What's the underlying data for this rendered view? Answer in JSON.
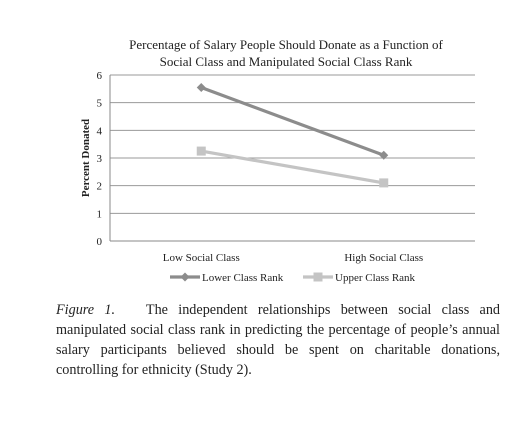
{
  "chart_data": {
    "type": "line",
    "title_lines": [
      "Percentage of Salary People Should Donate as a Function of",
      "Social Class and Manipulated Social Class Rank"
    ],
    "ylabel": "Percent Donated",
    "xlabel": "",
    "categories": [
      "Low Social Class",
      "High Social Class"
    ],
    "ylim": [
      0,
      6
    ],
    "yticks": [
      "0",
      "1",
      "2",
      "3",
      "4",
      "5",
      "6"
    ],
    "grid": true,
    "legend_position": "bottom",
    "series": [
      {
        "name": "Lower Class Rank",
        "values": [
          5.55,
          3.1
        ],
        "color": "#8c8c8c",
        "marker": "diamond"
      },
      {
        "name": "Upper Class Rank",
        "values": [
          3.25,
          2.1
        ],
        "color": "#c4c4c4",
        "marker": "square"
      }
    ]
  },
  "caption": {
    "label": "Figure 1.",
    "text": "The independent relationships between social class and manipulated social class rank in predicting the percentage of people’s annual salary participants believed should be spent on charitable donations, controlling for ethnicity (Study 2)."
  }
}
